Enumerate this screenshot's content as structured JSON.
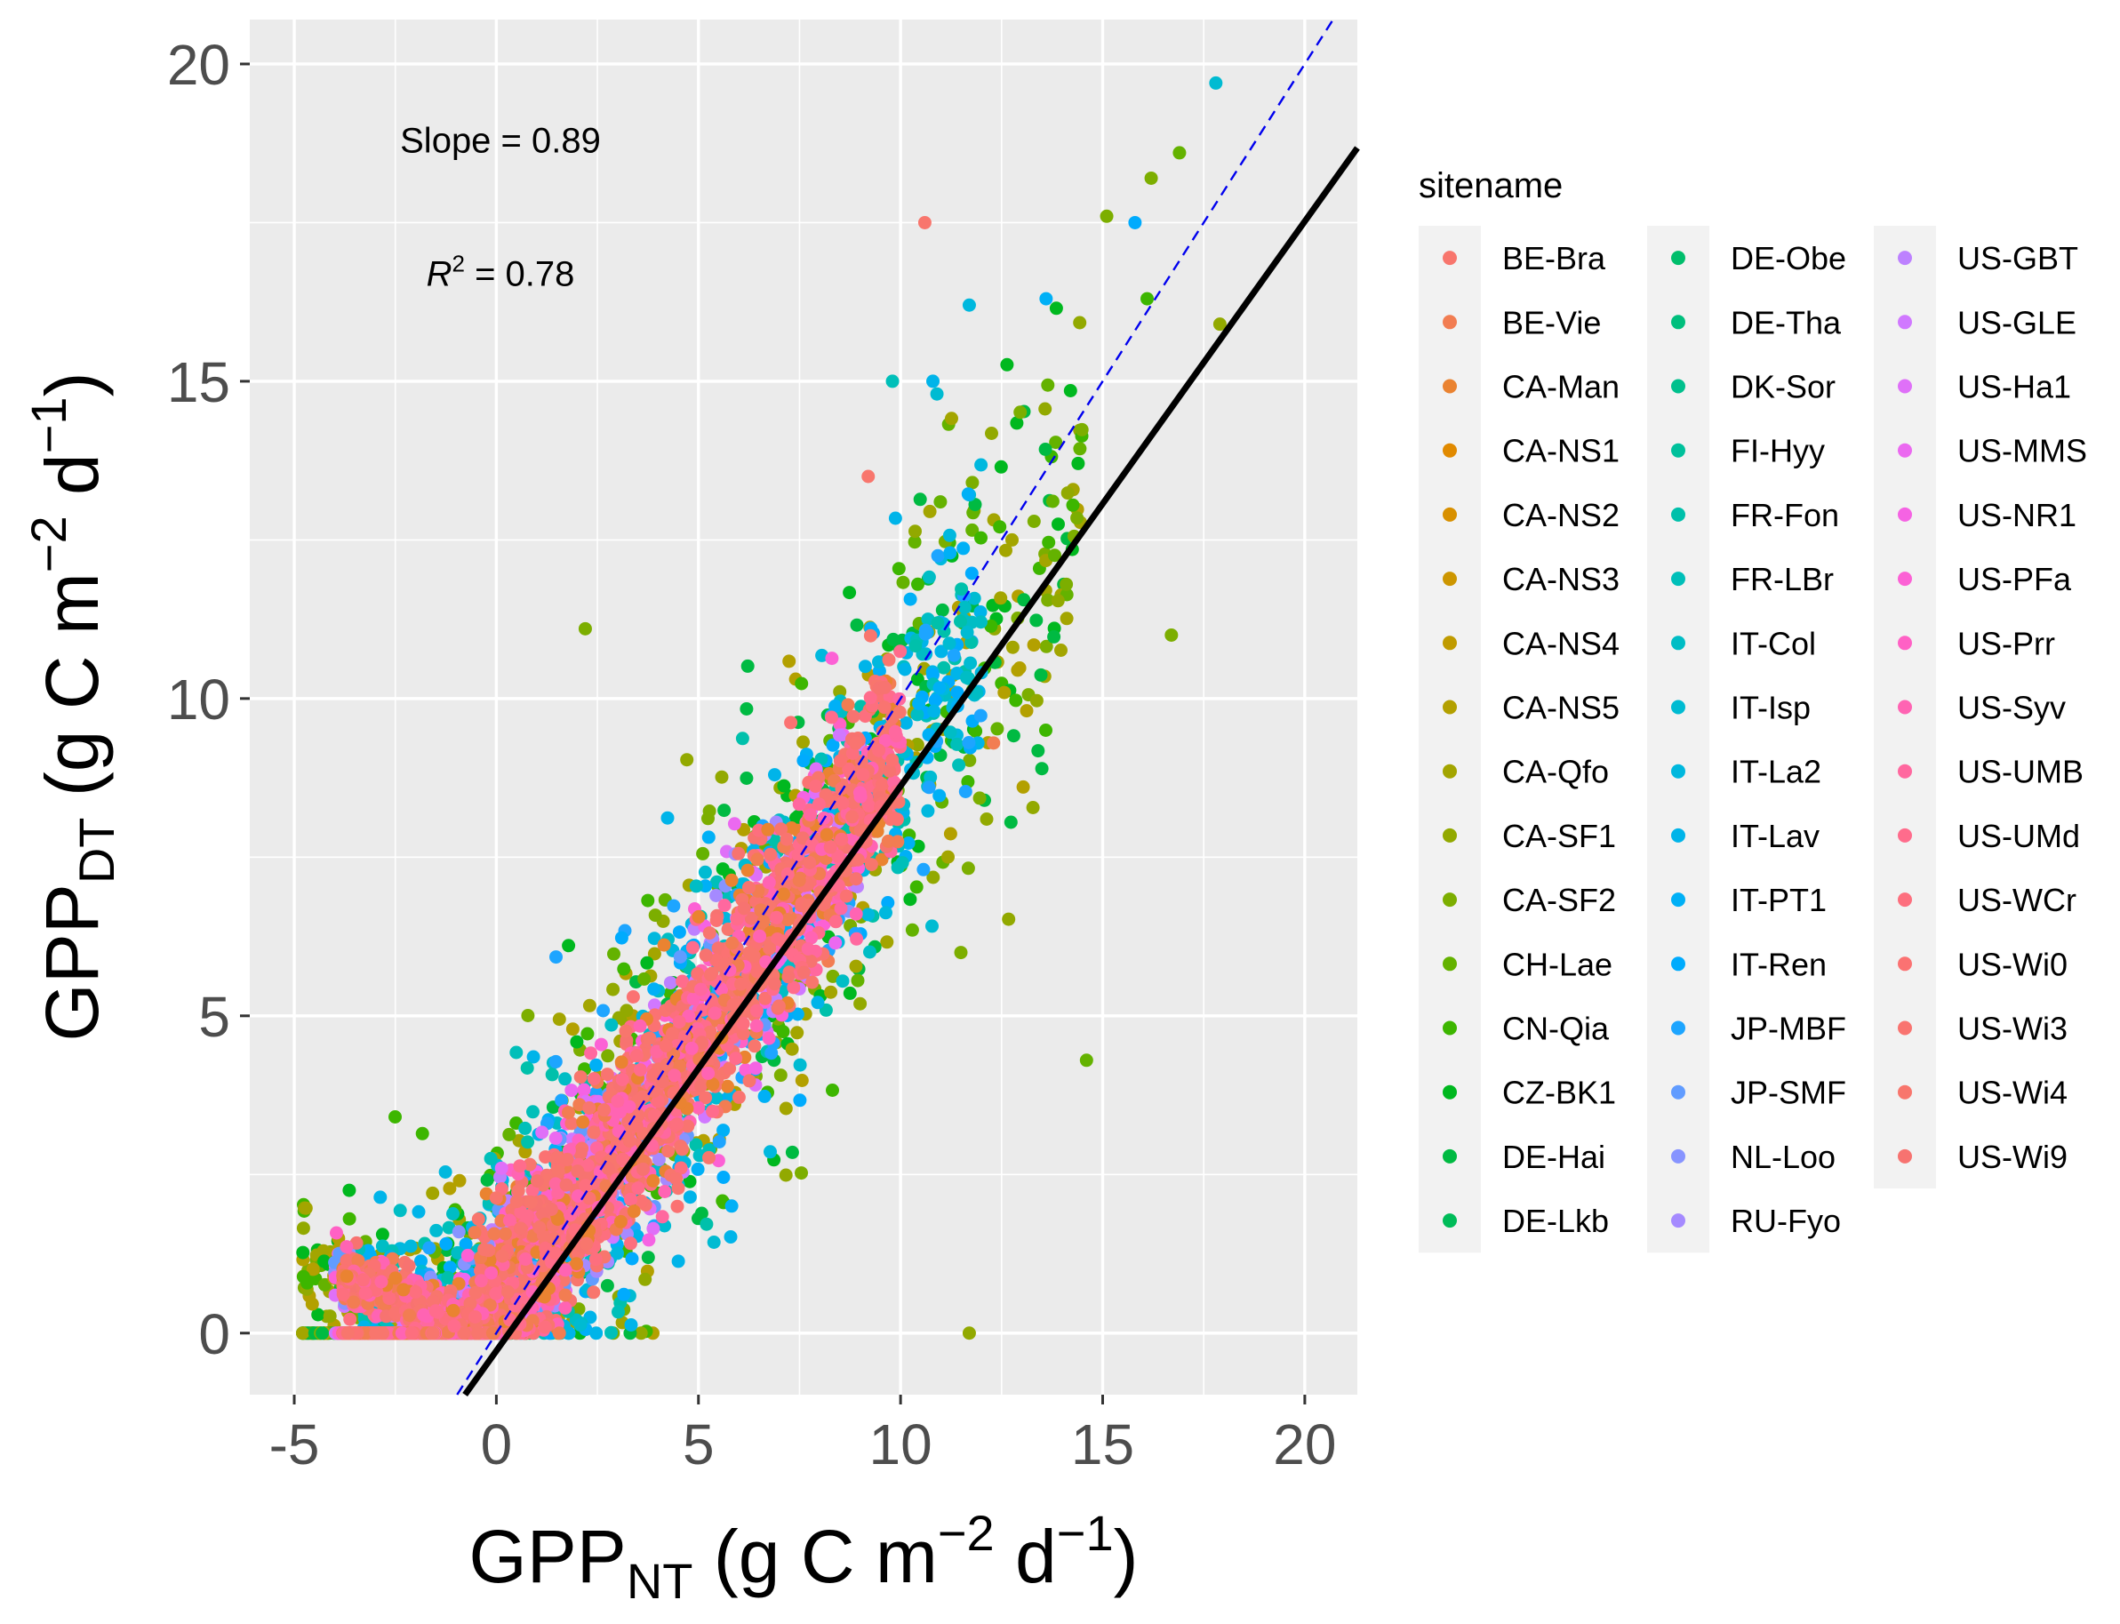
{
  "chart_data": {
    "type": "scatter",
    "title": "",
    "x_axis": {
      "label_base": "GPP",
      "label_sub": "NT",
      "label_unit_prefix": " (g C m",
      "label_exp1": "−2",
      "label_mid": " d",
      "label_exp2": "−1",
      "label_suffix": ")",
      "range": [
        -6.1,
        21.3
      ],
      "ticks": [
        -5,
        0,
        5,
        10,
        15,
        20
      ],
      "tick_labels": [
        "-5",
        "0",
        "5",
        "10",
        "15",
        "20"
      ]
    },
    "y_axis": {
      "label_base": "GPP",
      "label_sub": "DT",
      "label_unit_prefix": " (g C m",
      "label_exp1": "−2",
      "label_mid": " d",
      "label_exp2": "−1",
      "label_suffix": ")",
      "range": [
        -0.97,
        20.7
      ],
      "ticks": [
        0,
        5,
        10,
        15,
        20
      ],
      "tick_labels": [
        "0",
        "5",
        "10",
        "15",
        "20"
      ]
    },
    "grid": true,
    "panel_background": "#ebebeb",
    "annotations": {
      "slope_text": "Slope = 0.89",
      "r2_prefix": "R",
      "r2_exp": "2",
      "r2_suffix": " = 0.78",
      "slope_position": [
        0,
        18.8
      ],
      "r2_position": [
        0,
        16.7
      ]
    },
    "fit_line": {
      "slope": 0.89,
      "intercept": -0.28,
      "color": "#000000"
    },
    "one_to_one_line": {
      "slope": 1.0,
      "intercept": 0.0,
      "color": "#0000ee",
      "dashed": true
    },
    "legend": {
      "title": "sitename",
      "placement": "right",
      "columns": 3
    },
    "series": [
      {
        "name": "BE-Bra",
        "color": "#F8766D"
      },
      {
        "name": "BE-Vie",
        "color": "#F27D52"
      },
      {
        "name": "CA-Man",
        "color": "#EA8331"
      },
      {
        "name": "CA-NS1",
        "color": "#E18A00"
      },
      {
        "name": "CA-NS2",
        "color": "#D89000"
      },
      {
        "name": "CA-NS3",
        "color": "#CD9600"
      },
      {
        "name": "CA-NS4",
        "color": "#C09B00"
      },
      {
        "name": "CA-NS5",
        "color": "#B3A000"
      },
      {
        "name": "CA-Qfo",
        "color": "#A3A500"
      },
      {
        "name": "CA-SF1",
        "color": "#92A900"
      },
      {
        "name": "CA-SF2",
        "color": "#7CAE00"
      },
      {
        "name": "CH-Lae",
        "color": "#64B200"
      },
      {
        "name": "CN-Qia",
        "color": "#3DB600"
      },
      {
        "name": "CZ-BK1",
        "color": "#00B81F"
      },
      {
        "name": "DE-Hai",
        "color": "#00BA42"
      },
      {
        "name": "DE-Lkb",
        "color": "#00BC59"
      },
      {
        "name": "DE-Obe",
        "color": "#00BE6C"
      },
      {
        "name": "DE-Tha",
        "color": "#00BF7D"
      },
      {
        "name": "DK-Sor",
        "color": "#00C08D"
      },
      {
        "name": "FI-Hyy",
        "color": "#00C19C"
      },
      {
        "name": "FR-Fon",
        "color": "#00C0AB"
      },
      {
        "name": "FR-LBr",
        "color": "#00BFB9"
      },
      {
        "name": "IT-Col",
        "color": "#00BDC5"
      },
      {
        "name": "IT-Isp",
        "color": "#00BBD2"
      },
      {
        "name": "IT-La2",
        "color": "#00B8DE"
      },
      {
        "name": "IT-Lav",
        "color": "#00B4E9"
      },
      {
        "name": "IT-PT1",
        "color": "#00B0F6"
      },
      {
        "name": "IT-Ren",
        "color": "#00ABFD"
      },
      {
        "name": "JP-MBF",
        "color": "#1DA5FF"
      },
      {
        "name": "JP-SMF",
        "color": "#619CFF"
      },
      {
        "name": "NL-Loo",
        "color": "#8794FF"
      },
      {
        "name": "RU-Fyo",
        "color": "#A58AFF"
      },
      {
        "name": "US-GBT",
        "color": "#BD81FF"
      },
      {
        "name": "US-GLE",
        "color": "#D078FF"
      },
      {
        "name": "US-Ha1",
        "color": "#DF70F8"
      },
      {
        "name": "US-MMS",
        "color": "#EB69F0"
      },
      {
        "name": "US-NR1",
        "color": "#F563E3"
      },
      {
        "name": "US-PFa",
        "color": "#FC61D5"
      },
      {
        "name": "US-Prr",
        "color": "#FF61C5"
      },
      {
        "name": "US-Syv",
        "color": "#FF64B3"
      },
      {
        "name": "US-UMB",
        "color": "#FF689F"
      },
      {
        "name": "US-UMd",
        "color": "#FF6C8C"
      },
      {
        "name": "US-WCr",
        "color": "#FD6F7E"
      },
      {
        "name": "US-Wi0",
        "color": "#FB7272"
      },
      {
        "name": "US-Wi3",
        "color": "#F97470"
      },
      {
        "name": "US-Wi4",
        "color": "#F8766D"
      },
      {
        "name": "US-Wi9",
        "color": "#F77370"
      }
    ],
    "outlier_points": [
      {
        "x": 17.8,
        "y": 19.7,
        "color": "#00BBD2"
      },
      {
        "x": 10.6,
        "y": 17.5,
        "color": "#F8766D"
      },
      {
        "x": 16.9,
        "y": 18.6,
        "color": "#64B200"
      },
      {
        "x": 16.2,
        "y": 18.2,
        "color": "#7CAE00"
      },
      {
        "x": 15.8,
        "y": 17.5,
        "color": "#00ABFD"
      },
      {
        "x": 15.1,
        "y": 17.6,
        "color": "#7CAE00"
      },
      {
        "x": 16.1,
        "y": 16.3,
        "color": "#3DB600"
      },
      {
        "x": 17.9,
        "y": 15.9,
        "color": "#92A900"
      },
      {
        "x": 16.7,
        "y": 11.0,
        "color": "#7CAE00"
      },
      {
        "x": 14.6,
        "y": 4.3,
        "color": "#64B200"
      },
      {
        "x": 12.3,
        "y": 9.3,
        "color": "#F27D52"
      },
      {
        "x": 9.2,
        "y": 13.5,
        "color": "#F8766D"
      },
      {
        "x": 10.8,
        "y": 15.0,
        "color": "#00B4E9"
      },
      {
        "x": 13.6,
        "y": 16.3,
        "color": "#00B0F6"
      },
      {
        "x": 2.2,
        "y": 11.1,
        "color": "#7CAE00"
      },
      {
        "x": 10.9,
        "y": 14.8,
        "color": "#00BBD2"
      },
      {
        "x": 11.7,
        "y": 16.2,
        "color": "#00B8DE"
      },
      {
        "x": 11.7,
        "y": 0.0,
        "color": "#92A900"
      },
      {
        "x": 9.8,
        "y": 15.0,
        "color": "#00BFB9"
      },
      {
        "x": 14.1,
        "y": 11.8,
        "color": "#7CAE00"
      }
    ],
    "cloud": {
      "fraction_on_zero_line": 0.05,
      "notes": "dense point cloud along the fit line"
    }
  }
}
